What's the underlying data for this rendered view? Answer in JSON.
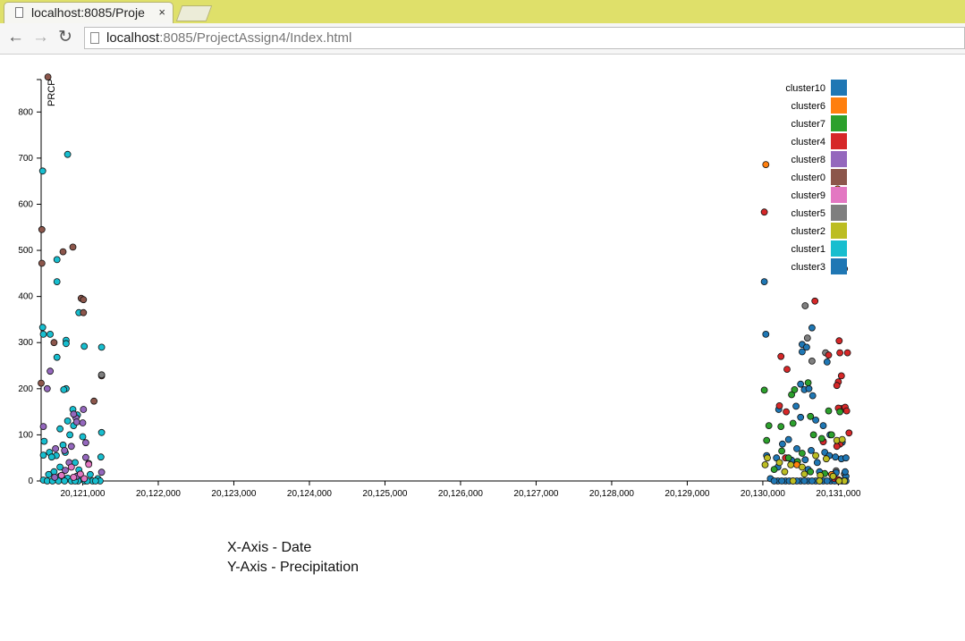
{
  "browser": {
    "tab_title": "localhost:8085/Proje",
    "close_glyph": "×",
    "url_host": "localhost",
    "url_rest": ":8085/ProjectAssign4/Index.html",
    "back_icon": "back-arrow-icon",
    "forward_icon": "forward-arrow-icon",
    "reload_icon": "reload-icon"
  },
  "captions": {
    "x_axis": "X-Axis - Date",
    "y_axis": "Y-Axis - Precipitation"
  },
  "chart_data": {
    "type": "scatter",
    "ylabel": "PRCP",
    "ylim": [
      0,
      880
    ],
    "xlim": [
      20120450,
      20131125
    ],
    "x_ticks": [
      20121000,
      20122000,
      20123000,
      20124000,
      20125000,
      20126000,
      20127000,
      20128000,
      20129000,
      20130000,
      20131000
    ],
    "x_tick_labels": [
      "20,121,000",
      "20,122,000",
      "20,123,000",
      "20,124,000",
      "20,125,000",
      "20,126,000",
      "20,127,000",
      "20,128,000",
      "20,129,000",
      "20,130,000",
      "20,131,000"
    ],
    "y_ticks": [
      0,
      100,
      200,
      300,
      400,
      500,
      600,
      700,
      800
    ],
    "legend_position": "top-right",
    "legend": [
      {
        "name": "cluster10",
        "color": "#1f77b4"
      },
      {
        "name": "cluster6",
        "color": "#ff7f0e"
      },
      {
        "name": "cluster7",
        "color": "#2ca02c"
      },
      {
        "name": "cluster4",
        "color": "#d62728"
      },
      {
        "name": "cluster8",
        "color": "#9467bd"
      },
      {
        "name": "cluster0",
        "color": "#8c564b"
      },
      {
        "name": "cluster9",
        "color": "#e377c2"
      },
      {
        "name": "cluster5",
        "color": "#7f7f7f"
      },
      {
        "name": "cluster2",
        "color": "#bcbd22"
      },
      {
        "name": "cluster1",
        "color": "#17becf"
      },
      {
        "name": "cluster3",
        "color": "#1f77b4"
      }
    ],
    "series": [
      {
        "name": "cluster1",
        "color": "#17becf",
        "points": [
          [
            20120470,
            672
          ],
          [
            20120800,
            708
          ],
          [
            20120470,
            333
          ],
          [
            20120480,
            318
          ],
          [
            20120570,
            318
          ],
          [
            20120660,
            480
          ],
          [
            20120660,
            432
          ],
          [
            20120780,
            305
          ],
          [
            20120780,
            298
          ],
          [
            20120950,
            365
          ],
          [
            20121020,
            292
          ],
          [
            20121250,
            290
          ],
          [
            20120660,
            268
          ],
          [
            20120780,
            200
          ],
          [
            20120750,
            198
          ],
          [
            20120870,
            155
          ],
          [
            20120930,
            143
          ],
          [
            20120800,
            130
          ],
          [
            20120880,
            120
          ],
          [
            20120700,
            113
          ],
          [
            20120490,
            86
          ],
          [
            20120830,
            100
          ],
          [
            20121000,
            96
          ],
          [
            20121250,
            105
          ],
          [
            20120560,
            62
          ],
          [
            20120650,
            55
          ],
          [
            20120590,
            52
          ],
          [
            20120480,
            56
          ],
          [
            20120740,
            78
          ],
          [
            20121240,
            52
          ],
          [
            20120770,
            62
          ],
          [
            20120900,
            40
          ],
          [
            20120700,
            30
          ],
          [
            20120950,
            24
          ],
          [
            20120620,
            20
          ],
          [
            20120550,
            14
          ],
          [
            20120700,
            10
          ],
          [
            20120800,
            6
          ],
          [
            20120960,
            3
          ],
          [
            20121100,
            14
          ],
          [
            20121200,
            5
          ],
          [
            20120480,
            2
          ],
          [
            20120530,
            0
          ],
          [
            20120600,
            0
          ],
          [
            20120680,
            0
          ],
          [
            20120760,
            0
          ],
          [
            20120850,
            0
          ],
          [
            20120940,
            0
          ],
          [
            20121030,
            0
          ],
          [
            20121130,
            0
          ],
          [
            20121230,
            0
          ],
          [
            20120900,
            0
          ],
          [
            20121060,
            0
          ],
          [
            20121170,
            0
          ]
        ]
      },
      {
        "name": "cluster0",
        "color": "#8c564b",
        "points": [
          [
            20120540,
            876
          ],
          [
            20120460,
            545
          ],
          [
            20120460,
            472
          ],
          [
            20120740,
            497
          ],
          [
            20120870,
            507
          ],
          [
            20120980,
            396
          ],
          [
            20121010,
            393
          ],
          [
            20121010,
            365
          ],
          [
            20120620,
            300
          ],
          [
            20120450,
            212
          ],
          [
            20121150,
            173
          ],
          [
            20121250,
            228
          ]
        ]
      },
      {
        "name": "cluster8",
        "color": "#9467bd",
        "points": [
          [
            20120570,
            238
          ],
          [
            20120530,
            200
          ],
          [
            20120480,
            118
          ],
          [
            20120910,
            137
          ],
          [
            20121010,
            155
          ],
          [
            20120880,
            145
          ],
          [
            20120920,
            128
          ],
          [
            20121000,
            126
          ],
          [
            20121040,
            83
          ],
          [
            20121040,
            51
          ],
          [
            20121080,
            38
          ],
          [
            20120640,
            70
          ],
          [
            20120760,
            66
          ],
          [
            20120850,
            75
          ],
          [
            20120820,
            40
          ],
          [
            20120770,
            23
          ],
          [
            20120920,
            10
          ],
          [
            20121250,
            19
          ],
          [
            20120630,
            8
          ]
        ]
      },
      {
        "name": "cluster9",
        "color": "#e377c2",
        "points": [
          [
            20120850,
            30
          ],
          [
            20120970,
            15
          ],
          [
            20121080,
            36
          ],
          [
            20120880,
            8
          ],
          [
            20121020,
            5
          ],
          [
            20120720,
            12
          ]
        ]
      },
      {
        "name": "cluster5",
        "color": "#7f7f7f",
        "points": [
          [
            20121250,
            230
          ],
          [
            20130560,
            380
          ],
          [
            20130590,
            310
          ],
          [
            20130650,
            260
          ],
          [
            20130830,
            278
          ],
          [
            20130970,
            22
          ],
          [
            20131080,
            15
          ]
        ]
      },
      {
        "name": "cluster10",
        "color": "#1f77b4",
        "points": [
          [
            20130020,
            432
          ],
          [
            20130040,
            318
          ],
          [
            20130650,
            332
          ],
          [
            20130520,
            296
          ],
          [
            20130520,
            280
          ],
          [
            20130580,
            290
          ],
          [
            20130850,
            258
          ],
          [
            20130500,
            210
          ],
          [
            20130550,
            198
          ],
          [
            20130610,
            200
          ],
          [
            20130660,
            185
          ],
          [
            20130210,
            155
          ],
          [
            20130440,
            162
          ],
          [
            20130500,
            138
          ],
          [
            20130700,
            132
          ],
          [
            20130800,
            120
          ],
          [
            20130890,
            100
          ],
          [
            20130340,
            90
          ],
          [
            20130260,
            80
          ],
          [
            20130800,
            86
          ],
          [
            20130990,
            78
          ],
          [
            20131050,
            84
          ],
          [
            20130450,
            70
          ],
          [
            20130640,
            66
          ],
          [
            20130820,
            62
          ],
          [
            20130880,
            55
          ],
          [
            20130180,
            50
          ],
          [
            20130380,
            45
          ],
          [
            20130560,
            46
          ],
          [
            20130720,
            40
          ],
          [
            20130960,
            52
          ],
          [
            20131040,
            48
          ],
          [
            20131100,
            50
          ],
          [
            20130050,
            55
          ],
          [
            20130200,
            30
          ],
          [
            20130600,
            25
          ],
          [
            20130750,
            20
          ],
          [
            20130970,
            18
          ],
          [
            20131100,
            10
          ],
          [
            20130100,
            5
          ],
          [
            20130200,
            0
          ],
          [
            20130300,
            0
          ],
          [
            20130400,
            0
          ],
          [
            20130500,
            0
          ],
          [
            20130600,
            0
          ],
          [
            20130700,
            0
          ],
          [
            20130800,
            0
          ],
          [
            20130900,
            0
          ],
          [
            20131000,
            0
          ],
          [
            20131100,
            0
          ],
          [
            20130150,
            0
          ],
          [
            20130250,
            0
          ],
          [
            20130350,
            0
          ],
          [
            20130450,
            0
          ],
          [
            20130550,
            0
          ],
          [
            20130650,
            0
          ],
          [
            20130750,
            0
          ],
          [
            20130850,
            0
          ],
          [
            20130950,
            0
          ],
          [
            20131050,
            0
          ],
          [
            20131090,
            20
          ]
        ]
      },
      {
        "name": "cluster4",
        "color": "#d62728",
        "points": [
          [
            20130020,
            583
          ],
          [
            20131030,
            470
          ],
          [
            20131080,
            460
          ],
          [
            20130690,
            390
          ],
          [
            20131010,
            304
          ],
          [
            20131020,
            278
          ],
          [
            20131120,
            278
          ],
          [
            20130870,
            273
          ],
          [
            20130240,
            270
          ],
          [
            20130320,
            242
          ],
          [
            20131040,
            228
          ],
          [
            20131000,
            215
          ],
          [
            20130980,
            207
          ],
          [
            20130220,
            163
          ],
          [
            20130310,
            150
          ],
          [
            20131040,
            157
          ],
          [
            20131090,
            160
          ],
          [
            20131110,
            152
          ],
          [
            20131000,
            158
          ],
          [
            20131140,
            104
          ],
          [
            20131020,
            80
          ],
          [
            20130980,
            75
          ],
          [
            20130800,
            85
          ],
          [
            20130300,
            50
          ],
          [
            20130950,
            5
          ],
          [
            20131000,
            3
          ]
        ]
      },
      {
        "name": "cluster7",
        "color": "#2ca02c",
        "points": [
          [
            20130020,
            197
          ],
          [
            20130600,
            213
          ],
          [
            20130380,
            187
          ],
          [
            20130420,
            198
          ],
          [
            20130080,
            120
          ],
          [
            20130240,
            118
          ],
          [
            20130400,
            125
          ],
          [
            20130630,
            140
          ],
          [
            20130870,
            152
          ],
          [
            20131020,
            150
          ],
          [
            20130670,
            100
          ],
          [
            20130780,
            92
          ],
          [
            20130910,
            100
          ],
          [
            20130250,
            65
          ],
          [
            20130050,
            88
          ],
          [
            20130340,
            50
          ],
          [
            20130460,
            42
          ],
          [
            20130520,
            60
          ],
          [
            20130150,
            25
          ],
          [
            20130630,
            20
          ],
          [
            20130820,
            16
          ]
        ]
      },
      {
        "name": "cluster6",
        "color": "#ff7f0e",
        "points": [
          [
            20130040,
            686
          ],
          [
            20130990,
            633
          ],
          [
            20130450,
            35
          ],
          [
            20130910,
            14
          ]
        ]
      },
      {
        "name": "cluster2",
        "color": "#bcbd22",
        "points": [
          [
            20130060,
            50
          ],
          [
            20130220,
            40
          ],
          [
            20130370,
            35
          ],
          [
            20130520,
            30
          ],
          [
            20130700,
            55
          ],
          [
            20130840,
            48
          ],
          [
            20130980,
            88
          ],
          [
            20131050,
            90
          ],
          [
            20130030,
            35
          ],
          [
            20130290,
            20
          ],
          [
            20130550,
            15
          ],
          [
            20130760,
            12
          ],
          [
            20130930,
            10
          ],
          [
            20131080,
            0
          ],
          [
            20130400,
            0
          ],
          [
            20130750,
            0
          ],
          [
            20131010,
            0
          ]
        ]
      }
    ]
  }
}
